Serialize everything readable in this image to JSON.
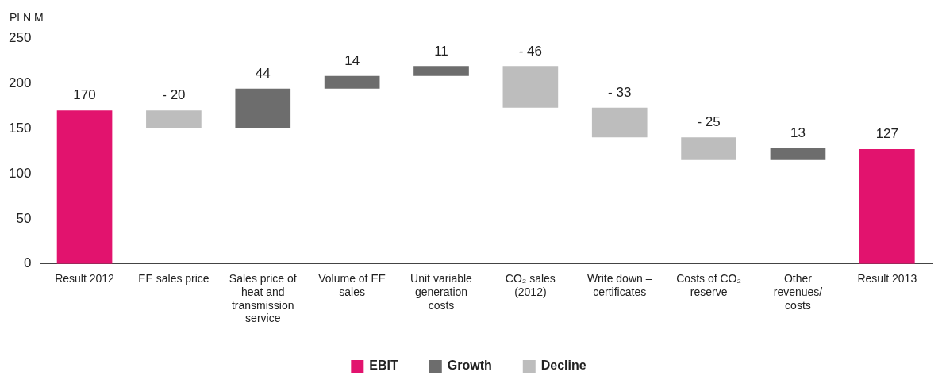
{
  "chart_data": {
    "type": "bar",
    "ylabel": "PLN M",
    "categories": [
      "Result 2012",
      "EE sales price",
      "Sales price of heat and transmission service",
      "Volume of EE sales",
      "Unit variable generation costs",
      "CO₂ sales (2012)",
      "Write down – certificates",
      "Costs of CO₂ reserve",
      "Other revenues/ costs",
      "Result 2013"
    ],
    "series": [
      {
        "name": "EBIT",
        "color": "#e2136e",
        "values": [
          170,
          null,
          null,
          null,
          null,
          null,
          null,
          null,
          null,
          127
        ],
        "base": [
          0,
          null,
          null,
          null,
          null,
          null,
          null,
          null,
          null,
          0
        ],
        "value_labels": [
          "170",
          null,
          null,
          null,
          null,
          null,
          null,
          null,
          null,
          "127"
        ]
      },
      {
        "name": "Growth",
        "color": "#6d6d6d",
        "values": [
          null,
          null,
          44,
          14,
          11,
          null,
          null,
          null,
          13,
          null
        ],
        "base": [
          null,
          null,
          150,
          194,
          208,
          null,
          null,
          null,
          115,
          null
        ],
        "value_labels": [
          null,
          null,
          "44",
          "14",
          "11",
          null,
          null,
          null,
          "13",
          null
        ]
      },
      {
        "name": "Decline",
        "color": "#bdbdbd",
        "values": [
          null,
          -20,
          null,
          null,
          null,
          -46,
          -33,
          -25,
          null,
          null
        ],
        "base": [
          null,
          170,
          null,
          null,
          null,
          219,
          173,
          140,
          null,
          null
        ],
        "value_labels": [
          null,
          "- 20",
          null,
          null,
          null,
          "- 46",
          "- 33",
          "- 25",
          null,
          null
        ]
      }
    ],
    "ylim": [
      0,
      250
    ],
    "yticks": [
      0,
      50,
      100,
      150,
      200,
      250
    ],
    "grid": false,
    "legend": "bottom"
  }
}
